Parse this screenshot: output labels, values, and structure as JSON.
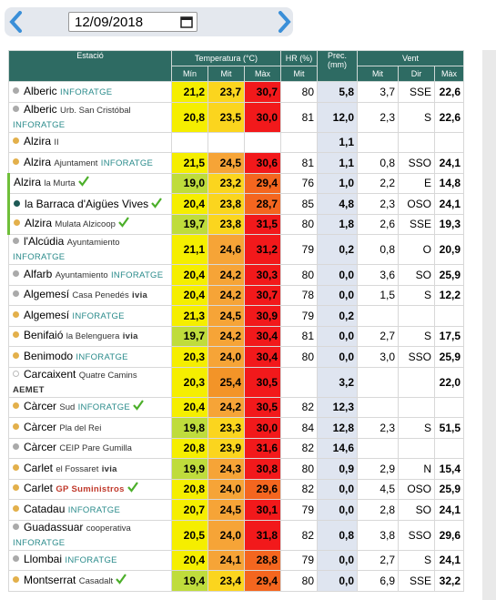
{
  "toolbar": {
    "date": "12/09/2018"
  },
  "table": {
    "groups": [
      "Estació",
      "Temperatura (°C)",
      "HR (%)",
      "Prec. (mm)",
      "Vent"
    ],
    "columns": [
      "Mín",
      "Mit",
      "Màx",
      "Mit",
      "Mit",
      "Dir",
      "Màx"
    ],
    "rows": [
      {
        "name": "Alberic",
        "source": "INFORATGE",
        "cells": [
          "21,2",
          "23,7",
          "30,7",
          "80",
          "5,8",
          "3,7",
          "SSE",
          "22,6"
        ]
      },
      {
        "name": "Alberic",
        "place": "Urb. San Cristóbal",
        "source": "INFORATGE",
        "cells": [
          "20,8",
          "23,5",
          "30,0",
          "81",
          "12,0",
          "2,3",
          "S",
          "22,6"
        ]
      },
      {
        "name": "Alzira",
        "place": "II",
        "cells": [
          null,
          null,
          null,
          null,
          "1,1",
          null,
          null,
          null
        ]
      },
      {
        "name": "Alzira",
        "place": "Ajuntament",
        "source": "INFORATGE",
        "cells": [
          "21,5",
          "24,5",
          "30,6",
          "81",
          "1,1",
          "0,8",
          "SSO",
          "24,1"
        ]
      },
      {
        "name": "Alzira",
        "place": "la Murta",
        "cells": [
          "19,0",
          "23,2",
          "29,4",
          "76",
          "1,0",
          "2,2",
          "E",
          "14,8"
        ]
      },
      {
        "name": "la Barraca d'Aigües Vives",
        "cells": [
          "20,4",
          "23,8",
          "28,7",
          "85",
          "4,8",
          "2,3",
          "OSO",
          "24,1"
        ]
      },
      {
        "name": "Alzira",
        "place": "Mulata Alzicoop",
        "cells": [
          "19,7",
          "23,8",
          "31,5",
          "80",
          "1,8",
          "2,6",
          "SSE",
          "19,3"
        ]
      },
      {
        "name": "l'Alcúdia",
        "place": "Ayuntamiento",
        "source": "INFORATGE",
        "cells": [
          "21,1",
          "24,6",
          "31,2",
          "79",
          "0,2",
          "0,8",
          "O",
          "20,9"
        ]
      },
      {
        "name": "Alfarb",
        "place": "Ayuntamiento",
        "source": "INFORATGE",
        "cells": [
          "20,4",
          "24,2",
          "30,3",
          "80",
          "0,0",
          "3,6",
          "SO",
          "25,9"
        ]
      },
      {
        "name": "Algemesí",
        "place": "Casa Penedés",
        "source": "ivia",
        "cells": [
          "20,4",
          "24,2",
          "30,7",
          "78",
          "0,0",
          "1,5",
          "S",
          "12,2"
        ]
      },
      {
        "name": "Algemesí",
        "source": "INFORATGE",
        "cells": [
          "21,3",
          "24,5",
          "30,9",
          "79",
          "0,2",
          null,
          null,
          null
        ]
      },
      {
        "name": "Benifaió",
        "place": "la Belenguera",
        "source": "ivia",
        "cells": [
          "19,7",
          "24,2",
          "30,4",
          "81",
          "0,0",
          "2,7",
          "S",
          "17,5"
        ]
      },
      {
        "name": "Benimodo",
        "source": "INFORATGE",
        "cells": [
          "20,3",
          "24,0",
          "30,4",
          "80",
          "0,0",
          "3,0",
          "SSO",
          "25,9"
        ]
      },
      {
        "name": "Carcaixent",
        "place": "Quatre Camins",
        "source": "AEMET",
        "cells": [
          "20,3",
          "25,4",
          "30,5",
          null,
          "3,2",
          null,
          null,
          "22,0"
        ]
      },
      {
        "name": "Càrcer",
        "place": "Sud",
        "source": "INFORATGE",
        "cells": [
          "20,4",
          "24,2",
          "30,5",
          "82",
          "12,3",
          null,
          null,
          null
        ]
      },
      {
        "name": "Càrcer",
        "place": "Pla del Rei",
        "cells": [
          "19,8",
          "23,3",
          "30,0",
          "84",
          "12,8",
          "2,3",
          "S",
          "51,5"
        ]
      },
      {
        "name": "Càrcer",
        "place": "CEIP Pare Gumilla",
        "cells": [
          "20,8",
          "23,9",
          "31,6",
          "82",
          "14,6",
          null,
          null,
          null
        ]
      },
      {
        "name": "Carlet",
        "place": "el Fossaret",
        "source": "ivia",
        "cells": [
          "19,9",
          "24,3",
          "30,8",
          "80",
          "0,9",
          "2,9",
          "N",
          "15,4"
        ]
      },
      {
        "name": "Carlet",
        "source": "GP Suministros",
        "cells": [
          "20,8",
          "24,0",
          "29,6",
          "82",
          "0,0",
          "4,5",
          "OSO",
          "25,9"
        ]
      },
      {
        "name": "Catadau",
        "source": "INFORATGE",
        "cells": [
          "20,7",
          "24,5",
          "30,1",
          "79",
          "0,0",
          "2,8",
          "SO",
          "24,1"
        ]
      },
      {
        "name": "Guadassuar",
        "place": "cooperativa",
        "source": "INFORATGE",
        "cells": [
          "20,5",
          "24,0",
          "31,8",
          "82",
          "0,8",
          "3,8",
          "SSO",
          "29,6"
        ]
      },
      {
        "name": "Llombai",
        "source": "INFORATGE",
        "cells": [
          "20,4",
          "24,1",
          "28,8",
          "79",
          "0,0",
          "2,7",
          "S",
          "24,1"
        ]
      },
      {
        "name": "Montserrat",
        "place": "Casadalt",
        "cells": [
          "19,4",
          "23,4",
          "29,4",
          "80",
          "0,0",
          "6,9",
          "SSE",
          "32,2"
        ]
      }
    ]
  }
}
